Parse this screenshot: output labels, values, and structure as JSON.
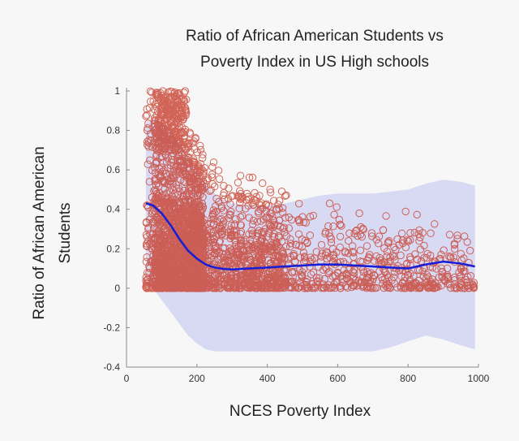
{
  "chart_data": {
    "type": "scatter",
    "title_lines": [
      "Ratio of African American Students vs",
      "Poverty Index in US High schools"
    ],
    "xlabel": "NCES Poverty Index",
    "ylabel_lines": [
      "Ratio of African American",
      "Students"
    ],
    "xlim": [
      0,
      1000
    ],
    "ylim": [
      -0.4,
      1
    ],
    "xticks": [
      0,
      200,
      400,
      600,
      800,
      1000
    ],
    "yticks": [
      -0.4,
      -0.2,
      0,
      0.2,
      0.4,
      0.6,
      0.8,
      1
    ],
    "ytick_labels": [
      "-0.4",
      "-0.2",
      "0",
      "0.2",
      "0.4",
      "0.6",
      "0.8",
      "1"
    ],
    "grid": false,
    "colors": {
      "points": "#c8402f",
      "trend": "#1a1fd6",
      "band": "#d6d8f2",
      "axis": "#888888"
    },
    "trend_line": {
      "x": [
        55,
        75,
        100,
        125,
        150,
        175,
        200,
        225,
        250,
        275,
        300,
        350,
        400,
        450,
        500,
        550,
        600,
        650,
        700,
        750,
        800,
        850,
        900,
        950,
        990
      ],
      "y": [
        0.43,
        0.42,
        0.38,
        0.32,
        0.25,
        0.19,
        0.15,
        0.12,
        0.105,
        0.098,
        0.095,
        0.1,
        0.105,
        0.11,
        0.115,
        0.12,
        0.12,
        0.115,
        0.11,
        0.105,
        0.1,
        0.12,
        0.135,
        0.125,
        0.11
      ]
    },
    "confidence_band": {
      "x": [
        55,
        75,
        100,
        125,
        150,
        175,
        200,
        225,
        250,
        275,
        300,
        350,
        400,
        450,
        500,
        550,
        600,
        650,
        700,
        750,
        800,
        850,
        900,
        950,
        990
      ],
      "upper": [
        0.84,
        0.86,
        0.84,
        0.8,
        0.74,
        0.67,
        0.6,
        0.53,
        0.48,
        0.45,
        0.43,
        0.42,
        0.42,
        0.43,
        0.45,
        0.47,
        0.48,
        0.48,
        0.48,
        0.49,
        0.5,
        0.53,
        0.55,
        0.54,
        0.52
      ],
      "lower": [
        0.02,
        0.0,
        -0.06,
        -0.12,
        -0.18,
        -0.24,
        -0.28,
        -0.31,
        -0.32,
        -0.32,
        -0.32,
        -0.32,
        -0.32,
        -0.32,
        -0.32,
        -0.32,
        -0.32,
        -0.32,
        -0.32,
        -0.3,
        -0.27,
        -0.24,
        -0.26,
        -0.29,
        -0.31
      ]
    },
    "scatter_series": {
      "n": 3400,
      "x_range": [
        55,
        990
      ],
      "y_range": [
        0,
        1
      ],
      "marker": "open-circle"
    }
  }
}
